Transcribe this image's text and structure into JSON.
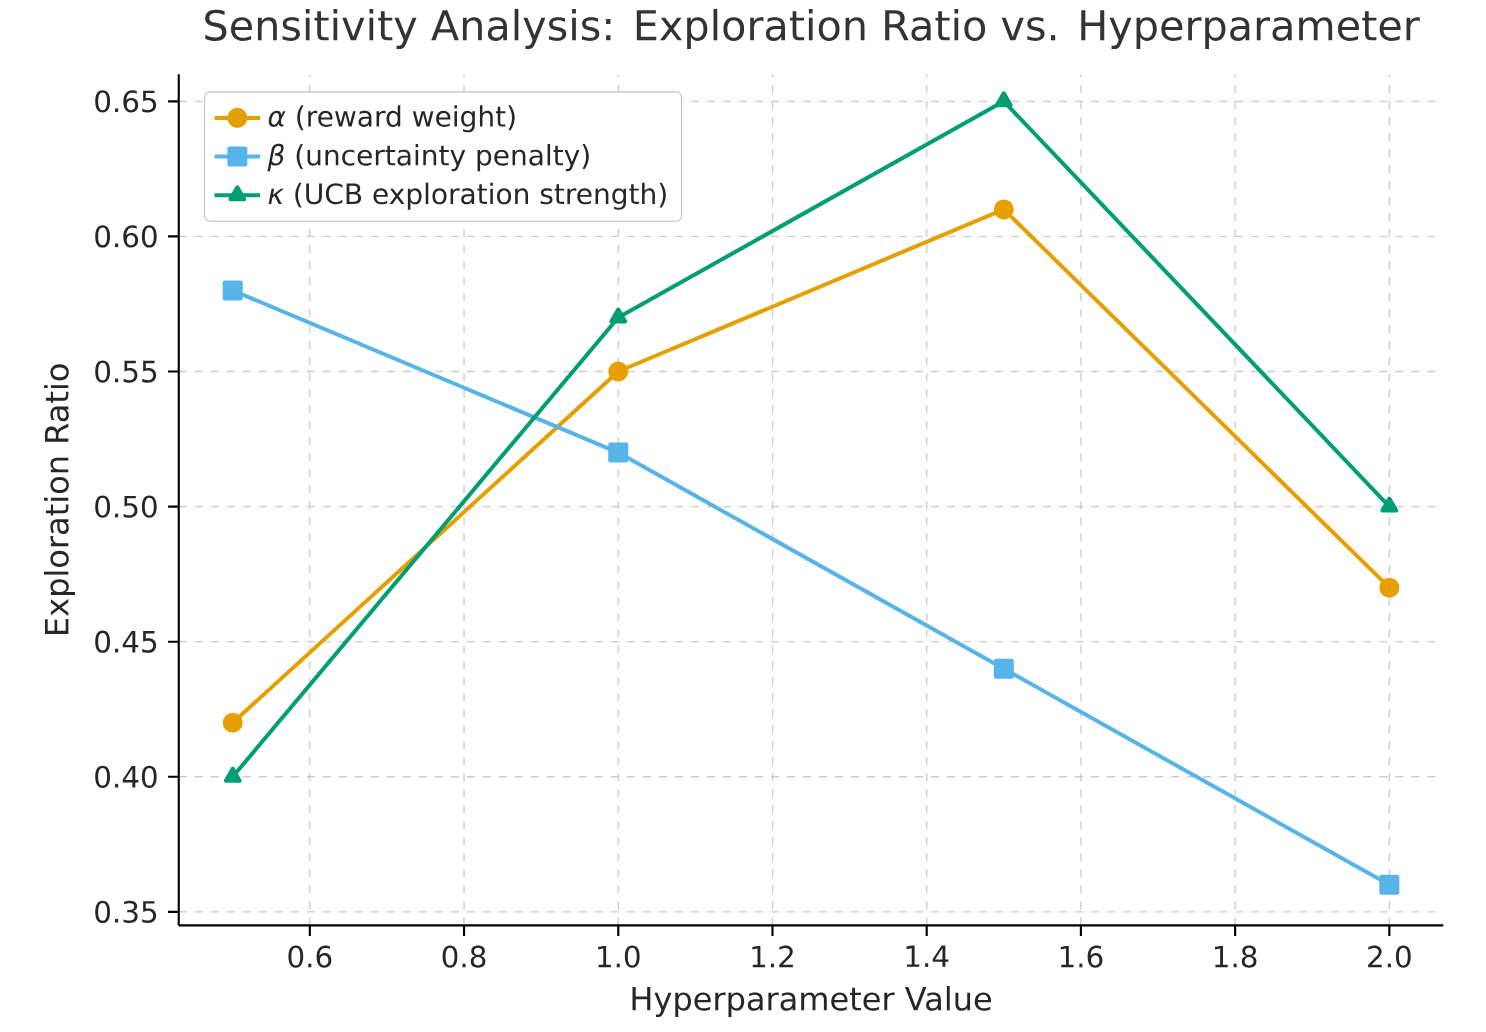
{
  "chart_data": {
    "type": "line",
    "title": "Sensitivity Analysis: Exploration Ratio vs. Hyperparameter",
    "xlabel": "Hyperparameter Value",
    "ylabel": "Exploration Ratio",
    "x": [
      0.5,
      1.0,
      1.5,
      2.0
    ],
    "series": [
      {
        "name": "*α* (reward weight)",
        "color": "#e69f00",
        "marker": "circle",
        "values": [
          0.42,
          0.55,
          0.61,
          0.47
        ]
      },
      {
        "name": "*β* (uncertainty penalty)",
        "color": "#56b4e9",
        "marker": "square",
        "values": [
          0.58,
          0.52,
          0.44,
          0.36
        ]
      },
      {
        "name": "*κ* (UCB exploration strength)",
        "color": "#009e73",
        "marker": "triangle",
        "values": [
          0.4,
          0.57,
          0.65,
          0.5
        ]
      }
    ],
    "xlim": [
      0.43,
      2.07
    ],
    "ylim": [
      0.345,
      0.66
    ],
    "xticks": [
      0.6,
      0.8,
      {
        "value": 1.0,
        "label": "1.0"
      },
      1.2,
      1.4,
      1.6,
      1.8,
      {
        "value": 2.0,
        "label": "2.0"
      }
    ],
    "yticks": [
      0.35,
      {
        "value": 0.4,
        "label": "0.40"
      },
      0.45,
      {
        "value": 0.5,
        "label": "0.50"
      },
      0.55,
      {
        "value": 0.6,
        "label": "0.60"
      },
      0.65
    ],
    "grid": true,
    "legend": "top left",
    "line_style": "solid"
  }
}
